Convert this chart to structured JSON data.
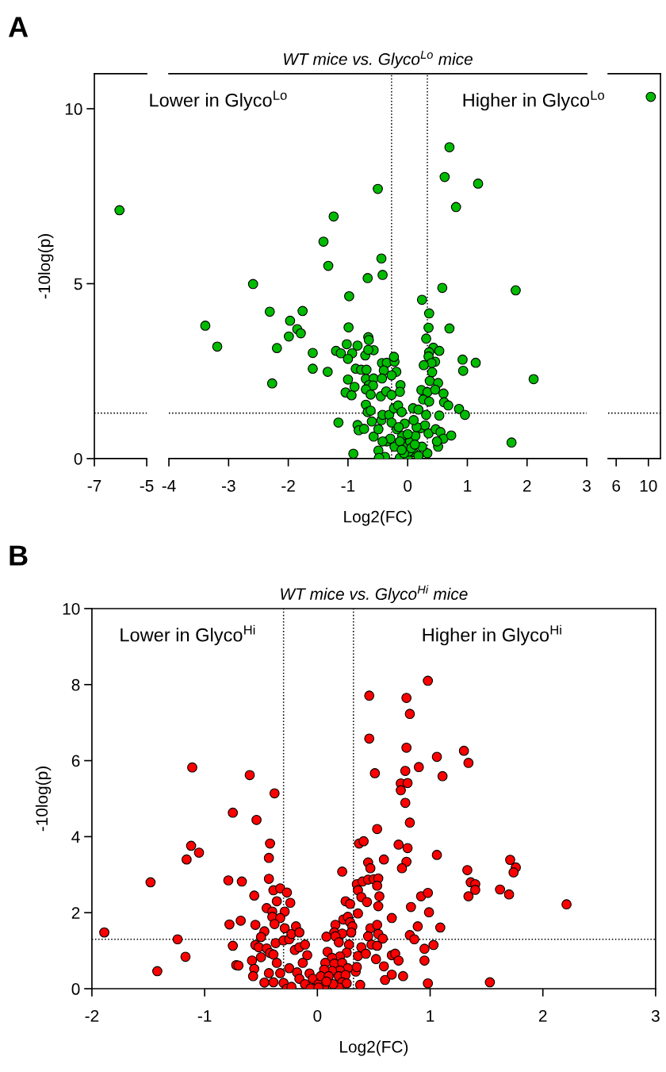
{
  "chart_data": [
    {
      "type": "scatter",
      "ylabel": "-10log(p)",
      "annotations": [
        "A"
      ],
      "xlim": [
        -7,
        -5
      ],
      "xticks": [
        -7,
        -5
      ],
      "ylim": [
        0,
        11
      ],
      "yticks": [
        0,
        5,
        10
      ],
      "marker": "circle",
      "series": [
        {
          "color": "#00bb00",
          "x": [
            -6.04
          ],
          "values": [
            7.1
          ]
        }
      ],
      "ref_lines": [
        {
          "axis": "y",
          "value": 1.3,
          "line_style": "dotted"
        }
      ]
    },
    {
      "type": "scatter",
      "title": "WT mice vs. Glyco$^{Lo}$ mice",
      "xlabel": "Log2(FC)",
      "annotations": [
        "Lower in Glyco$^{Lo}$",
        "Higher in Glyco$^{Lo}$"
      ],
      "xlim": [
        -4,
        3
      ],
      "xticks": [
        -4,
        -3,
        -2,
        -1,
        0,
        1,
        2,
        3
      ],
      "ylim": [
        0,
        11
      ],
      "tick_labels": "x",
      "marker": "circle",
      "series": [
        {
          "color": "#00bb00",
          "x": [
            -2.59,
            -3.39,
            -3.19,
            -2.31,
            -1.76,
            -1.97,
            -1.85,
            -1.79,
            -1.99,
            -2.19,
            -2.27,
            -1.59,
            -1.59,
            -1.34,
            -1.41,
            -1.24,
            -1.33,
            -1.16,
            0.7,
            0.62,
            1.18,
            0.81,
            -0.5,
            -0.44,
            -0.42,
            -0.67,
            -0.98,
            0.58,
            1.81,
            0.24,
            0.36,
            0.35,
            0.7,
            0.31,
            -0.99,
            -0.66,
            -0.65,
            -1.02,
            -0.84,
            -1.2,
            -1.12,
            -0.93,
            -1.0,
            -0.71,
            -0.57,
            -0.66,
            -0.87,
            -0.78,
            -0.69,
            -0.43,
            -0.35,
            -0.22,
            -0.23,
            -0.19,
            -0.4,
            -1.0,
            -0.89,
            -1.04,
            -0.94,
            -0.7,
            -0.57,
            -0.43,
            -0.65,
            -0.58,
            -0.7,
            -0.62,
            -0.45,
            -0.36,
            -0.27,
            -0.27,
            -0.12,
            -0.13,
            0.43,
            0.53,
            0.36,
            0.35,
            0.46,
            0.4,
            0.27,
            0.41,
            0.92,
            0.93,
            1.14,
            2.11,
            0.37,
            0.51,
            0.23,
            0.33,
            0.46,
            0.6,
            0.61,
            0.68,
            0.26,
            0.36,
            0.86,
            0.96,
            0.53,
            1.74,
            -0.91,
            -0.84,
            -0.82,
            -0.73,
            -0.7,
            -0.67,
            -0.62,
            -0.6,
            -0.57,
            -0.49,
            -0.44,
            -0.42,
            -0.31,
            -0.23,
            -0.16,
            -0.1,
            -0.49,
            -0.38,
            -0.48,
            -0.35,
            -0.22,
            -0.13,
            0.0,
            -0.04,
            -0.09,
            -0.18,
            -0.27,
            0.04,
            0.09,
            0.13,
            0.22,
            0.09,
            0.18,
            0.31,
            0.29,
            0.35,
            0.33,
            0.47,
            0.55,
            0.6,
            0.73,
            0.51,
            0.49,
            0.24,
            0.18,
            -0.13,
            -0.29,
            -0.42,
            0.02,
            -0.06,
            0.06,
            0.12,
            -0.1,
            0.15,
            0.0,
            -0.05,
            0.1,
            -0.15
          ],
          "values": [
            4.99,
            3.8,
            3.2,
            4.2,
            4.22,
            3.94,
            3.7,
            3.58,
            3.49,
            3.16,
            2.15,
            3.02,
            2.57,
            2.48,
            6.2,
            6.92,
            5.51,
            1.03,
            8.9,
            8.05,
            7.86,
            7.19,
            7.71,
            5.72,
            5.25,
            5.16,
            4.64,
            4.88,
            4.81,
            4.54,
            4.15,
            3.74,
            3.72,
            3.43,
            3.75,
            3.47,
            3.39,
            3.27,
            3.23,
            3.08,
            3.01,
            3.01,
            2.85,
            2.95,
            3.1,
            3.11,
            2.57,
            2.54,
            2.54,
            2.73,
            2.74,
            2.77,
            2.91,
            2.48,
            2.52,
            2.26,
            2.05,
            1.89,
            1.81,
            2.28,
            2.29,
            2.29,
            2.1,
            2.09,
            1.98,
            1.83,
            1.78,
            1.92,
            1.82,
            2.38,
            2.1,
            1.91,
            3.17,
            3.08,
            3.04,
            2.92,
            2.77,
            2.73,
            2.67,
            2.47,
            2.83,
            2.51,
            2.74,
            2.27,
            2.22,
            2.16,
            1.96,
            1.9,
            1.97,
            1.86,
            1.61,
            1.52,
            1.69,
            1.63,
            1.42,
            1.25,
            1.23,
            0.46,
            0.14,
            0.96,
            0.81,
            0.85,
            1.54,
            1.33,
            1.37,
            1.06,
            0.63,
            0.84,
            1.1,
            1.25,
            1.25,
            1.44,
            1.52,
            1.33,
            0.23,
            0.05,
            0.02,
            0.49,
            0.34,
            0.02,
            0.04,
            0.34,
            0.65,
            0.84,
            1.03,
            0.49,
            0.19,
            0.65,
            0.87,
            1.44,
            1.4,
            1.25,
            0.95,
            0.72,
            0.15,
            0.84,
            0.76,
            0.57,
            0.66,
            0.34,
            0.49,
            0.34,
            0.08,
            0.49,
            0.57,
            0.49,
            0.2,
            0.15,
            0.3,
            0.4,
            0.25,
            0.9,
            0.7,
            1.0,
            1.1,
            0.9
          ]
        }
      ],
      "ref_lines": [
        {
          "axis": "x",
          "value": -0.27,
          "line_style": "dotted"
        },
        {
          "axis": "x",
          "value": 0.33,
          "line_style": "dotted"
        },
        {
          "axis": "y",
          "value": 1.3,
          "line_style": "dotted"
        }
      ]
    },
    {
      "type": "scatter",
      "xlim": [
        5,
        11.5
      ],
      "xticks": [
        6,
        10
      ],
      "ylim": [
        0,
        11
      ],
      "tick_labels": "x",
      "marker": "circle",
      "series": [
        {
          "color": "#00bb00",
          "x": [
            10.3
          ],
          "values": [
            10.34
          ]
        }
      ],
      "ref_lines": [
        {
          "axis": "y",
          "value": 1.3,
          "line_style": "dotted"
        }
      ]
    },
    {
      "type": "scatter",
      "title": "WT mice vs. Glyco$^{Hi}$ mice",
      "xlabel": "Log2(FC)",
      "ylabel": "-10log(p)",
      "annotations": [
        "B",
        "Lower in Glyco$^{Hi}$",
        "Higher in Glyco$^{Hi}$"
      ],
      "xlim": [
        -2,
        3
      ],
      "xticks": [
        -2,
        -1,
        0,
        1,
        2,
        3
      ],
      "ylim": [
        0,
        10
      ],
      "yticks": [
        0,
        2,
        4,
        6,
        8,
        10
      ],
      "marker": "circle",
      "series": [
        {
          "color": "#ff0000",
          "x": [
            -1.89,
            -1.48,
            -1.42,
            -1.24,
            -1.17,
            -1.11,
            -1.12,
            -1.16,
            -1.05,
            -0.75,
            -0.6,
            -0.54,
            -0.38,
            -0.79,
            -0.67,
            -0.42,
            -0.43,
            -0.43,
            -0.78,
            -0.68,
            -0.75,
            -0.72,
            -0.7,
            -0.56,
            -0.55,
            -0.45,
            -0.39,
            -0.33,
            -0.27,
            -0.36,
            -0.29,
            -0.4,
            -0.4,
            -0.33,
            -0.38,
            -0.24,
            -0.47,
            -0.5,
            -0.55,
            -0.52,
            -0.45,
            -0.42,
            -0.5,
            -0.39,
            -0.58,
            -0.56,
            -0.57,
            -0.47,
            -0.43,
            -0.39,
            -0.36,
            -0.33,
            -0.37,
            -0.3,
            -0.29,
            -0.25,
            -0.23,
            -0.19,
            -0.16,
            -0.3,
            -0.27,
            -0.23,
            -0.25,
            -0.18,
            -0.2,
            -0.16,
            -0.11,
            -0.09,
            -0.13,
            -0.16,
            -0.11,
            -0.06,
            -0.07,
            -0.04,
            0.01,
            0.98,
            0.46,
            0.79,
            0.82,
            0.46,
            0.79,
            1.3,
            1.06,
            1.34,
            0.9,
            0.78,
            0.51,
            1.11,
            0.74,
            0.8,
            0.74,
            0.78,
            0.82,
            0.53,
            0.37,
            0.41,
            0.72,
            0.8,
            1.06,
            0.59,
            0.45,
            0.79,
            0.47,
            0.75,
            0.22,
            1.71,
            1.76,
            1.74,
            1.33,
            1.36,
            1.4,
            1.4,
            1.34,
            1.62,
            1.7,
            2.21,
            0.35,
            0.4,
            0.45,
            0.5,
            0.54,
            0.53,
            0.36,
            0.39,
            0.44,
            0.55,
            0.54,
            0.92,
            0.98,
            0.83,
            0.99,
            0.25,
            0.29,
            0.36,
            0.23,
            0.27,
            0.29,
            0.31,
            0.3,
            0.16,
            0.15,
            0.22,
            0.08,
            0.16,
            0.19,
            0.66,
            0.47,
            0.53,
            0.89,
            1.09,
            0.45,
            0.54,
            0.58,
            0.82,
            0.86,
            0.48,
            0.53,
            0.95,
            1.03,
            0.39,
            0.36,
            0.43,
            0.52,
            0.66,
            0.69,
            0.72,
            0.95,
            0.59,
            0.6,
            0.66,
            0.76,
            0.98,
            1.53,
            0.38,
            0.34,
            0.35,
            0.28,
            0.26,
            0.2,
            0.09,
            0.13,
            0.07,
            0.15,
            0.22,
            0.27,
            0.2,
            0.13,
            0.06,
            0.03,
            0.1,
            0.19,
            0.25,
            0.22,
            0.26,
            0.19,
            0.14,
            0.06,
            0.01,
            0.08
          ],
          "values": [
            1.48,
            2.8,
            0.46,
            1.3,
            0.84,
            5.82,
            3.76,
            3.4,
            3.58,
            4.63,
            5.62,
            4.44,
            5.14,
            2.85,
            2.82,
            3.82,
            3.44,
            2.89,
            1.69,
            1.79,
            1.13,
            0.62,
            0.61,
            2.45,
            1.68,
            2.12,
            2.59,
            2.64,
            2.53,
            2.3,
            2.03,
            2.03,
            1.89,
            1.86,
            1.7,
            2.26,
            1.51,
            1.36,
            1.15,
            1.09,
            1.06,
            0.94,
            0.83,
            0.9,
            0.74,
            0.52,
            0.33,
            0.16,
            0.41,
            0.17,
            0.68,
            0.41,
            1.2,
            1.27,
            1.59,
            1.3,
            1.44,
            1.64,
            1.48,
            0.15,
            0.0,
            0.05,
            0.54,
            0.43,
            1.02,
            1.09,
            1.16,
            0.88,
            0.68,
            0.26,
            0.12,
            0.01,
            0.4,
            0.26,
            0.12,
            8.1,
            7.71,
            7.65,
            7.23,
            6.58,
            6.34,
            6.26,
            6.1,
            5.94,
            5.83,
            5.73,
            5.67,
            5.59,
            5.4,
            5.41,
            5.22,
            4.89,
            4.37,
            4.2,
            3.82,
            3.88,
            3.79,
            3.7,
            3.52,
            3.4,
            3.32,
            3.34,
            3.17,
            3.17,
            3.08,
            3.39,
            3.19,
            3.06,
            3.12,
            2.8,
            2.75,
            2.6,
            2.43,
            2.61,
            2.48,
            2.22,
            2.75,
            2.82,
            2.87,
            2.88,
            2.9,
            2.71,
            2.59,
            2.41,
            2.28,
            2.43,
            2.17,
            2.43,
            2.52,
            2.15,
            2.01,
            2.3,
            2.23,
            1.98,
            1.82,
            1.89,
            1.75,
            1.64,
            1.48,
            1.68,
            1.48,
            1.45,
            1.37,
            1.38,
            1.22,
            1.86,
            1.59,
            1.68,
            1.64,
            1.61,
            1.38,
            1.44,
            1.32,
            1.41,
            1.3,
            1.16,
            1.13,
            1.05,
            1.15,
            1.09,
            0.86,
            0.92,
            0.78,
            0.88,
            0.92,
            0.74,
            0.74,
            0.59,
            0.23,
            0.37,
            0.33,
            0.14,
            0.17,
            0.1,
            0.45,
            0.57,
            1.16,
            0.95,
            0.85,
            0.97,
            0.81,
            0.68,
            0.66,
            0.68,
            0.54,
            0.48,
            0.47,
            0.5,
            0.33,
            0.33,
            0.33,
            0.36,
            0.17,
            0.14,
            0.03,
            0.12,
            0.06,
            0.03,
            0.19
          ]
        }
      ],
      "ref_lines": [
        {
          "axis": "x",
          "value": -0.3,
          "line_style": "dotted"
        },
        {
          "axis": "x",
          "value": 0.32,
          "line_style": "dotted"
        },
        {
          "axis": "y",
          "value": 1.3,
          "line_style": "dotted"
        }
      ]
    }
  ]
}
